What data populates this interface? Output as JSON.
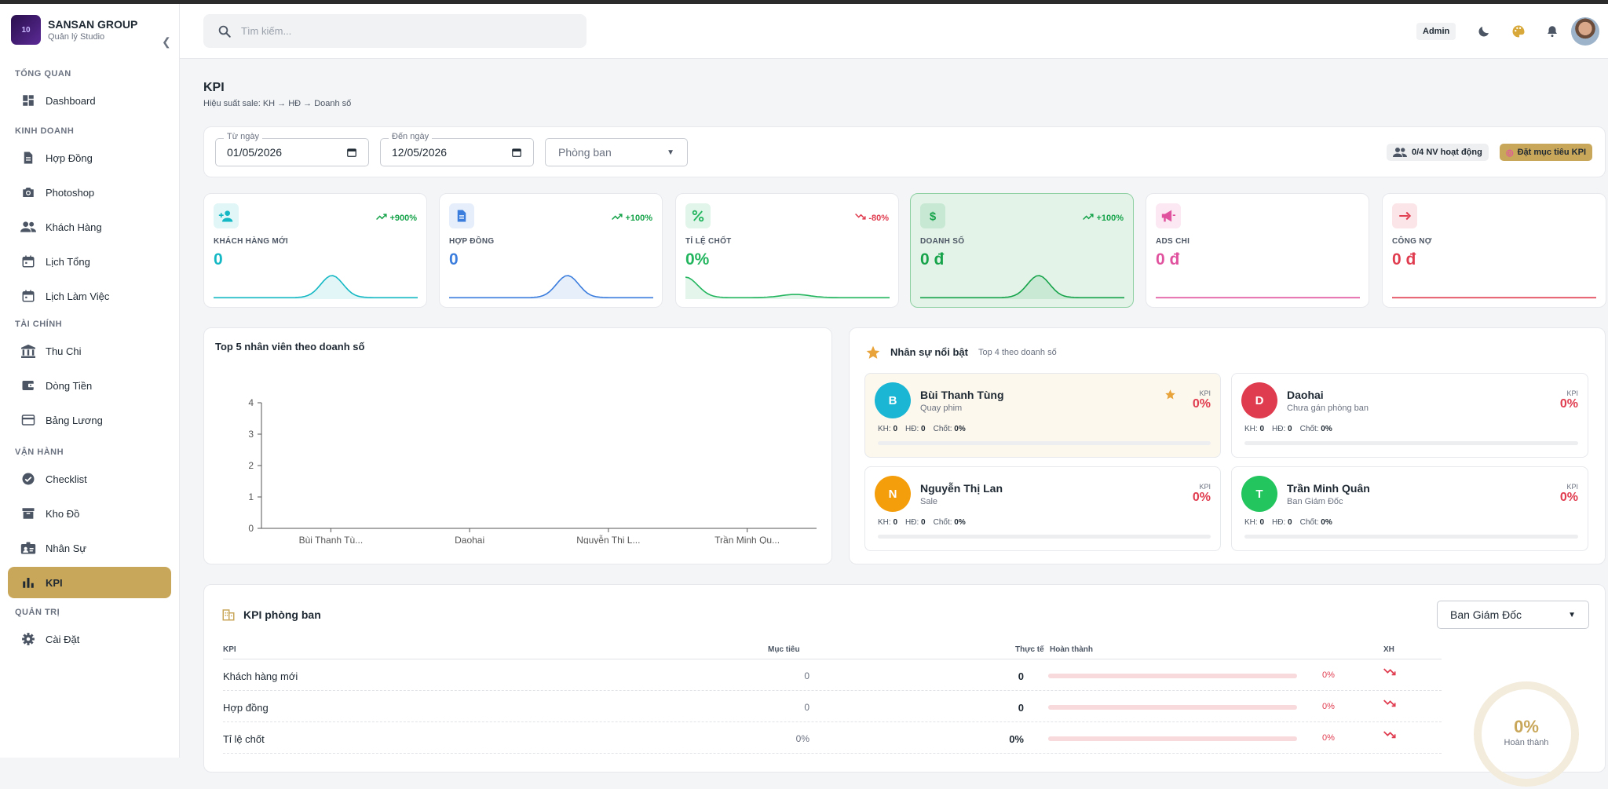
{
  "brand": {
    "logo": "10",
    "name": "SANSAN GROUP",
    "sub": "Quản lý Studio"
  },
  "sidebar": {
    "sections": [
      {
        "title": "TỔNG QUAN",
        "items": [
          {
            "label": "Dashboard",
            "icon": "dashboard-icon"
          }
        ]
      },
      {
        "title": "KINH DOANH",
        "items": [
          {
            "label": "Hợp Đồng",
            "icon": "document-icon"
          },
          {
            "label": "Photoshop",
            "icon": "camera-icon"
          },
          {
            "label": "Khách Hàng",
            "icon": "people-icon"
          },
          {
            "label": "Lịch Tổng",
            "icon": "calendar-icon"
          },
          {
            "label": "Lịch Làm Việc",
            "icon": "calendar-icon"
          }
        ]
      },
      {
        "title": "TÀI CHÍNH",
        "items": [
          {
            "label": "Thu Chi",
            "icon": "bank-icon"
          },
          {
            "label": "Dòng Tiền",
            "icon": "wallet-icon"
          },
          {
            "label": "Bảng Lương",
            "icon": "card-icon"
          }
        ]
      },
      {
        "title": "VẬN HÀNH",
        "items": [
          {
            "label": "Checklist",
            "icon": "check-circle-icon"
          },
          {
            "label": "Kho Đồ",
            "icon": "archive-icon"
          },
          {
            "label": "Nhân Sự",
            "icon": "badge-icon"
          },
          {
            "label": "KPI",
            "icon": "bar-chart-icon",
            "active": true
          }
        ]
      },
      {
        "title": "QUẢN TRỊ",
        "items": [
          {
            "label": "Cài Đặt",
            "icon": "gear-icon"
          }
        ]
      }
    ]
  },
  "header": {
    "search_placeholder": "Tìm kiếm...",
    "role": "Admin"
  },
  "page": {
    "title": "KPI",
    "subtitle": "Hiệu suất sale: KH → HĐ → Doanh số"
  },
  "filter": {
    "from_label": "Từ ngày",
    "from_value": "01/05/2026",
    "to_label": "Đến ngày",
    "to_value": "12/05/2026",
    "dept_placeholder": "Phòng ban",
    "active_staff": "0/4 NV hoạt động",
    "set_goal": "Đặt mục tiêu KPI"
  },
  "stats": [
    {
      "label": "KHÁCH HÀNG MỚI",
      "value": "0",
      "trend": "+900%",
      "up": true,
      "color": "#14b8c4",
      "icon": "person-add-icon"
    },
    {
      "label": "HỢP ĐỒNG",
      "value": "0",
      "trend": "+100%",
      "up": true,
      "color": "#3b7ddd",
      "icon": "document-icon"
    },
    {
      "label": "TỈ LỆ CHỐT",
      "value": "0%",
      "trend": "-80%",
      "up": false,
      "color": "#22b55e",
      "icon": "percent-icon"
    },
    {
      "label": "DOANH SỐ",
      "value": "0 đ",
      "trend": "+100%",
      "up": true,
      "color": "#16a34a",
      "icon": "dollar-icon"
    },
    {
      "label": "ADS CHI",
      "value": "0 đ",
      "trend": "",
      "up": true,
      "color": "#e0519e",
      "icon": "megaphone-icon"
    },
    {
      "label": "CÔNG NỢ",
      "value": "0 đ",
      "trend": "",
      "up": true,
      "color": "#e03c4f",
      "icon": "arrow-right-icon"
    }
  ],
  "chart_data": {
    "type": "bar",
    "title": "Top 5 nhân viên theo doanh số",
    "categories": [
      "Bùi Thanh Tù...",
      "Daohai",
      "Nguyễn Thị L...",
      "Trần Minh Qu..."
    ],
    "values": [
      0,
      0,
      0,
      0
    ],
    "ylim": [
      0,
      4
    ],
    "yticks": [
      "0",
      "1",
      "2",
      "3",
      "4"
    ],
    "grid": false
  },
  "staff": {
    "title": "Nhân sự nổi bật",
    "subtitle": "Top 4 theo doanh số",
    "people": [
      {
        "initial": "B",
        "name": "Bùi Thanh Tùng",
        "role": "Quay phim",
        "kpi_label": "KPI",
        "kpi": "0%",
        "kh": "KH:",
        "kh_v": "0",
        "hd": "HĐ:",
        "hd_v": "0",
        "chot": "Chốt:",
        "chot_v": "0%",
        "color": "#1bb6d4",
        "top": true
      },
      {
        "initial": "D",
        "name": "Daohai",
        "role": "Chưa gán phòng ban",
        "kpi_label": "KPI",
        "kpi": "0%",
        "kh": "KH:",
        "kh_v": "0",
        "hd": "HĐ:",
        "hd_v": "0",
        "chot": "Chốt:",
        "chot_v": "0%",
        "color": "#e03c4f",
        "top": false
      },
      {
        "initial": "N",
        "name": "Nguyễn Thị Lan",
        "role": "Sale",
        "kpi_label": "KPI",
        "kpi": "0%",
        "kh": "KH:",
        "kh_v": "0",
        "hd": "HĐ:",
        "hd_v": "0",
        "chot": "Chốt:",
        "chot_v": "0%",
        "color": "#f59e0b",
        "top": false
      },
      {
        "initial": "T",
        "name": "Trần Minh Quân",
        "role": "Ban Giám Đốc",
        "kpi_label": "KPI",
        "kpi": "0%",
        "kh": "KH:",
        "kh_v": "0",
        "hd": "HĐ:",
        "hd_v": "0",
        "chot": "Chốt:",
        "chot_v": "0%",
        "color": "#22c55e",
        "top": false
      }
    ]
  },
  "kpi_dept": {
    "title": "KPI phòng ban",
    "dept": "Ban Giám Đốc",
    "headers": {
      "kpi": "KPI",
      "target": "Mục tiêu",
      "actual": "Thực tế",
      "done": "Hoàn thành",
      "rank": "XH"
    },
    "rows": [
      {
        "name": "Khách hàng mới",
        "target": "0",
        "actual": "0",
        "pct": "0%"
      },
      {
        "name": "Hợp đồng",
        "target": "0",
        "actual": "0",
        "pct": "0%"
      },
      {
        "name": "Tỉ lệ chốt",
        "target": "0%",
        "actual": "0%",
        "pct": "0%"
      }
    ],
    "donut_value": "0%",
    "donut_label": "Hoàn thành"
  }
}
